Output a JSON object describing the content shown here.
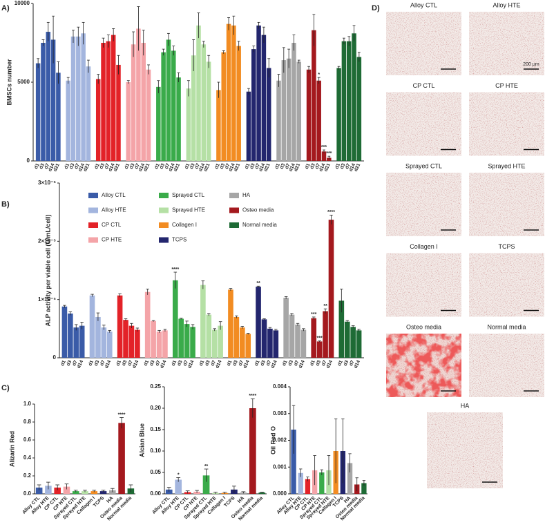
{
  "chart_data": [
    {
      "type": "bar",
      "panel": "A)",
      "ylabel": "BMSCs number",
      "categories": [
        "d1",
        "d3",
        "d7",
        "d14",
        "d21"
      ],
      "ylim": [
        0,
        10000
      ],
      "yticks": [
        0,
        5000,
        10000
      ],
      "series": [
        {
          "color": "#3a5ba8",
          "values": [
            6200,
            7500,
            8200,
            7700,
            5600
          ],
          "errors": [
            300,
            200,
            600,
            1500,
            700
          ]
        },
        {
          "color": "#a3b5de",
          "values": [
            5100,
            7900,
            7900,
            8100,
            6000
          ],
          "errors": [
            200,
            400,
            600,
            700,
            400
          ]
        },
        {
          "color": "#e32228",
          "values": [
            5200,
            7500,
            7600,
            8000,
            6100
          ],
          "errors": [
            300,
            300,
            400,
            400,
            600
          ]
        },
        {
          "color": "#f4a4a8",
          "values": [
            5000,
            7400,
            8400,
            7500,
            5800
          ],
          "errors": [
            100,
            800,
            1400,
            800,
            300
          ]
        },
        {
          "color": "#3aab4a",
          "values": [
            4700,
            6900,
            7700,
            7000,
            5300
          ],
          "errors": [
            400,
            200,
            400,
            300,
            300
          ]
        },
        {
          "color": "#b5e0a5",
          "values": [
            4600,
            6700,
            8600,
            7400,
            6300
          ],
          "errors": [
            500,
            1000,
            800,
            200,
            400
          ]
        },
        {
          "color": "#f28c22",
          "values": [
            4500,
            6900,
            8700,
            8600,
            7300
          ],
          "errors": [
            500,
            100,
            400,
            600,
            300
          ]
        },
        {
          "color": "#23266e",
          "values": [
            4400,
            7100,
            8600,
            8000,
            5900
          ],
          "errors": [
            200,
            200,
            200,
            500,
            600
          ]
        },
        {
          "color": "#a6a6a6",
          "values": [
            5100,
            6400,
            6500,
            7500,
            6300
          ],
          "errors": [
            400,
            800,
            600,
            500,
            100
          ]
        },
        {
          "color": "#a4191e",
          "values": [
            5800,
            8300,
            5100,
            600,
            200
          ],
          "errors": [
            200,
            1000,
            200,
            100,
            100
          ],
          "annotations": [
            null,
            null,
            "*",
            "***",
            "***"
          ]
        },
        {
          "color": "#1e6b35",
          "values": [
            5900,
            7600,
            7600,
            8100,
            6600
          ],
          "errors": [
            100,
            200,
            300,
            500,
            300
          ]
        }
      ]
    },
    {
      "type": "bar",
      "panel": "B)",
      "ylabel": "ALP activity per viable cell (U/mL/cell)",
      "legend": true,
      "categories": [
        "d1",
        "d3",
        "d7",
        "d14"
      ],
      "ylim": [
        0,
        3e-05
      ],
      "yticks": [
        0,
        {
          "value": 1e-05,
          "label": "1×10⁻⁵"
        },
        {
          "value": 2e-05,
          "label": "2×10⁻⁵"
        },
        {
          "value": 3e-05,
          "label": "3×10⁻⁵"
        }
      ],
      "series": [
        {
          "name": "Alloy CTL",
          "color": "#3a5ba8",
          "values": [
            8.8e-06,
            7.6e-06,
            5.2e-06,
            5.5e-06
          ],
          "errors": [
            2e-07,
            3e-07,
            5e-07,
            6e-07
          ]
        },
        {
          "name": "Alloy HTE",
          "color": "#a3b5de",
          "values": [
            1.07e-05,
            7e-06,
            5.2e-06,
            4.5e-06
          ],
          "errors": [
            2e-07,
            7e-07,
            4e-07,
            2e-07
          ]
        },
        {
          "name": "CP CTL",
          "color": "#e32228",
          "values": [
            1.07e-05,
            6.5e-06,
            5.5e-06,
            4.8e-06
          ],
          "errors": [
            3e-07,
            2e-07,
            4e-07,
            3e-07
          ]
        },
        {
          "name": "CP HTE",
          "color": "#f4a4a8",
          "values": [
            1.13e-05,
            6.3e-06,
            4.5e-06,
            4.7e-06
          ],
          "errors": [
            5e-07,
            1e-07,
            2e-07,
            2e-07
          ]
        },
        {
          "name": "Sprayed CTL",
          "color": "#3aab4a",
          "values": [
            1.33e-05,
            6.7e-06,
            5.8e-06,
            5.3e-06
          ],
          "errors": [
            1.4e-06,
            1e-07,
            5e-07,
            4e-07
          ],
          "annotations": [
            "****",
            null,
            null,
            null
          ]
        },
        {
          "name": "Sprayed HTE",
          "color": "#b5e0a5",
          "values": [
            1.25e-05,
            7.4e-06,
            4.8e-06,
            5.5e-06
          ],
          "errors": [
            7e-07,
            2e-07,
            2e-07,
            7e-07
          ]
        },
        {
          "name": "Collagen I",
          "color": "#f28c22",
          "values": [
            1.17e-05,
            7e-06,
            5.2e-06,
            4.1e-06
          ],
          "errors": [
            2e-07,
            2e-07,
            2e-07,
            1e-07
          ],
          "annotations": [
            null,
            null,
            null,
            null
          ]
        },
        {
          "name": "TCPS",
          "color": "#23266e",
          "values": [
            1.22e-05,
            6.6e-06,
            5e-06,
            4.7e-06
          ],
          "errors": [
            1e-07,
            1e-07,
            2e-07,
            2e-07
          ],
          "annotations": [
            "**",
            null,
            null,
            null
          ]
        },
        {
          "name": "HA",
          "color": "#a6a6a6",
          "values": [
            1.03e-05,
            7.4e-06,
            5.7e-06,
            4.8e-06
          ],
          "errors": [
            2e-07,
            2e-07,
            2e-07,
            2e-07
          ]
        },
        {
          "name": "Osteo media",
          "color": "#a4191e",
          "values": [
            6.8e-06,
            2.8e-06,
            8e-06,
            2.37e-05
          ],
          "errors": [
            2e-07,
            1e-07,
            4e-07,
            8e-07
          ],
          "annotations": [
            "***",
            "***",
            "**",
            "****"
          ]
        },
        {
          "name": "Normal media",
          "color": "#1e6b35",
          "values": [
            9.8e-06,
            6.2e-06,
            5.3e-06,
            4.7e-06
          ],
          "errors": [
            2e-06,
            2e-07,
            2e-07,
            2e-07
          ]
        }
      ]
    },
    {
      "type": "bar",
      "panel": "C)",
      "ylabel": "Alizarin Red",
      "categories": [
        "Alloy CTL",
        "Alloy HTE",
        "CP CTL",
        "CP HTE",
        "Sprayed CTL",
        "Sprayed HTE",
        "Collagen I",
        "TCPS",
        "HA",
        "Osteo media",
        "Normal media"
      ],
      "colors": [
        "#3a5ba8",
        "#a3b5de",
        "#e32228",
        "#f4a4a8",
        "#3aab4a",
        "#b5e0a5",
        "#f28c22",
        "#23266e",
        "#a6a6a6",
        "#a4191e",
        "#1e6b35"
      ],
      "ylim": [
        0,
        1
      ],
      "yticks": [
        {
          "value": 0,
          "label": "0.0"
        },
        0.2,
        0.4,
        0.6,
        0.8,
        {
          "value": 1,
          "label": "1.0"
        }
      ],
      "values": [
        0.07,
        0.09,
        0.07,
        0.08,
        0.03,
        0.03,
        0.03,
        0.03,
        0.04,
        0.79,
        0.06
      ],
      "errors": [
        0.03,
        0.04,
        0.03,
        0.03,
        0.01,
        0.01,
        0.01,
        0.01,
        0.02,
        0.06,
        0.04
      ],
      "annotations": [
        null,
        null,
        null,
        null,
        null,
        null,
        null,
        null,
        null,
        "****",
        null
      ]
    },
    {
      "type": "bar",
      "ylabel": "Alcian Blue",
      "categories": [
        "Alloy CTL",
        "Alloy HTE",
        "CP CTL",
        "CP HTE",
        "Sprayed CTL",
        "Sprayed HTE",
        "Collagen I",
        "TCPS",
        "HA",
        "Osteo media",
        "Normal media"
      ],
      "colors": [
        "#3a5ba8",
        "#a3b5de",
        "#e32228",
        "#f4a4a8",
        "#3aab4a",
        "#b5e0a5",
        "#f28c22",
        "#23266e",
        "#a6a6a6",
        "#a4191e",
        "#1e6b35"
      ],
      "ylim": [
        0,
        0.25
      ],
      "yticks": [
        {
          "value": 0,
          "label": "0.00"
        },
        0.05,
        {
          "value": 0.1,
          "label": "0.10"
        },
        0.15,
        {
          "value": 0.2,
          "label": "0.20"
        },
        0.25
      ],
      "values": [
        0.01,
        0.033,
        0.004,
        0.005,
        0.043,
        0.002,
        0.002,
        0.01,
        0.003,
        0.2,
        0.003
      ],
      "errors": [
        0.005,
        0.005,
        0.003,
        0.003,
        0.015,
        0.002,
        0.002,
        0.008,
        0.002,
        0.022,
        0.001
      ],
      "annotations": [
        null,
        "*",
        null,
        null,
        "**",
        null,
        null,
        null,
        null,
        "****",
        null
      ]
    },
    {
      "type": "bar",
      "ylabel": "Oil Red O",
      "categories": [
        "Alloy CTL",
        "Alloy HTE",
        "CP CTL",
        "CP HTE",
        "Sprayed CTL",
        "Sprayed HTE",
        "Collagen I",
        "TCPS",
        "HA",
        "Osteo media",
        "Normal media"
      ],
      "colors": [
        "#3a5ba8",
        "#a3b5de",
        "#e32228",
        "#f4a4a8",
        "#3aab4a",
        "#b5e0a5",
        "#f28c22",
        "#23266e",
        "#a6a6a6",
        "#a4191e",
        "#1e6b35"
      ],
      "ylim": [
        0,
        0.004
      ],
      "yticks": [
        {
          "value": 0,
          "label": "0.000"
        },
        0.001,
        0.002,
        0.003,
        0.004
      ],
      "values": [
        0.0024,
        0.00078,
        0.00055,
        0.00088,
        0.0008,
        0.00088,
        0.0016,
        0.0016,
        0.00115,
        0.00035,
        0.0004
      ],
      "errors": [
        0.0009,
        0.00015,
        8e-05,
        0.00055,
        0.0001,
        0.00055,
        0.0012,
        0.0012,
        0.00035,
        0.00025,
        0.0001
      ]
    }
  ],
  "images": {
    "panel": "D)",
    "scale_bar": "200 µm",
    "titles": [
      "Alloy CTL",
      "Alloy HTE",
      "CP CTL",
      "CP HTE",
      "Sprayed CTL",
      "Sprayed HTE",
      "Collagen I",
      "TCPS",
      "Osteo media",
      "Normal media",
      "HA"
    ]
  }
}
